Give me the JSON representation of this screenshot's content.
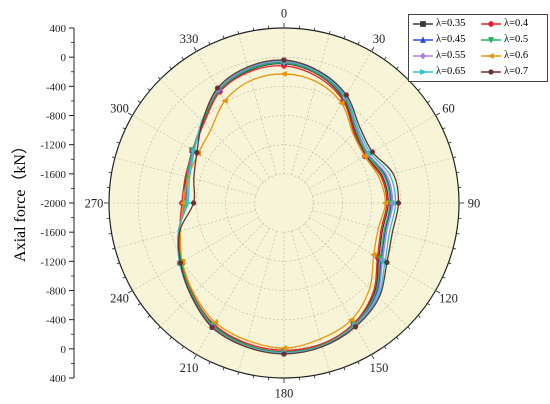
{
  "chart_data": {
    "type": "polar-line",
    "ylabel": "Axial force（kN）",
    "angle_ticks": [
      "0",
      "30",
      "60",
      "90",
      "120",
      "150",
      "180",
      "210",
      "240",
      "270",
      "300",
      "330"
    ],
    "radial_axis": {
      "tick_labels": [
        "400",
        "0",
        "-400",
        "-800",
        "-1200",
        "-1600",
        "-2000",
        "-1600",
        "-1200",
        "-800",
        "-400",
        "0",
        "400"
      ],
      "center_value": -2000,
      "outer_value": 400
    },
    "angles": [
      0,
      15,
      30,
      45,
      60,
      75,
      90,
      105,
      120,
      135,
      150,
      165,
      180,
      195,
      210,
      225,
      240,
      255,
      270,
      285,
      300,
      315,
      330,
      345
    ],
    "series": [
      {
        "name": "λ=0.35",
        "color": "#3a3a3a",
        "marker": "square",
        "values": [
          -90,
          -180,
          -360,
          -620,
          -700,
          -600,
          -570,
          -600,
          -500,
          -250,
          -90,
          10,
          40,
          10,
          -70,
          -230,
          -380,
          -520,
          -630,
          -610,
          -550,
          -430,
          -220,
          -120
        ]
      },
      {
        "name": "λ=0.4",
        "color": "#e8212b",
        "marker": "circle",
        "values": [
          -120,
          -210,
          -380,
          -640,
          -720,
          -620,
          -590,
          -620,
          -520,
          -270,
          -90,
          0,
          20,
          -10,
          -80,
          -230,
          -380,
          -520,
          -600,
          -600,
          -560,
          -450,
          -240,
          -140
        ]
      },
      {
        "name": "λ=0.45",
        "color": "#2a4fd6",
        "marker": "triangle-up",
        "values": [
          -70,
          -160,
          -330,
          -590,
          -670,
          -560,
          -530,
          -560,
          -460,
          -220,
          -70,
          20,
          50,
          20,
          -50,
          -210,
          -360,
          -510,
          -650,
          -630,
          -560,
          -420,
          -210,
          -100
        ]
      },
      {
        "name": "λ=0.5",
        "color": "#22b35a",
        "marker": "triangle-down",
        "values": [
          -80,
          -170,
          -345,
          -600,
          -680,
          -575,
          -545,
          -575,
          -475,
          -235,
          -75,
          15,
          45,
          15,
          -60,
          -220,
          -370,
          -515,
          -640,
          -620,
          -555,
          -425,
          -215,
          -110
        ]
      },
      {
        "name": "λ=0.55",
        "color": "#b07de0",
        "marker": "diamond",
        "values": [
          -60,
          -150,
          -320,
          -580,
          -660,
          -540,
          -510,
          -540,
          -440,
          -200,
          -60,
          30,
          55,
          30,
          -40,
          -200,
          -350,
          -500,
          -660,
          -640,
          -570,
          -410,
          -200,
          -90
        ]
      },
      {
        "name": "λ=0.6",
        "color": "#e6960a",
        "marker": "triangle-left",
        "values": [
          -230,
          -280,
          -420,
          -660,
          -720,
          -650,
          -610,
          -660,
          -580,
          -340,
          -150,
          -70,
          -10,
          -50,
          -110,
          -250,
          -390,
          -530,
          -620,
          -640,
          -640,
          -580,
          -380,
          -260
        ]
      },
      {
        "name": "λ=0.65",
        "color": "#27c6c9",
        "marker": "triangle-right",
        "values": [
          -50,
          -140,
          -310,
          -560,
          -630,
          -500,
          -470,
          -500,
          -400,
          -180,
          -50,
          35,
          60,
          35,
          -35,
          -200,
          -350,
          -500,
          -680,
          -660,
          -580,
          -410,
          -190,
          -80
        ]
      },
      {
        "name": "λ=0.7",
        "color": "#6b3030",
        "marker": "hexagon",
        "values": [
          -40,
          -130,
          -290,
          -530,
          -600,
          -450,
          -430,
          -460,
          -370,
          -160,
          -40,
          40,
          70,
          40,
          -30,
          -200,
          -360,
          -520,
          -760,
          -720,
          -620,
          -420,
          -180,
          -70
        ]
      }
    ],
    "grid": true,
    "legend_position": "top-right",
    "background": "#f8f4d8"
  }
}
